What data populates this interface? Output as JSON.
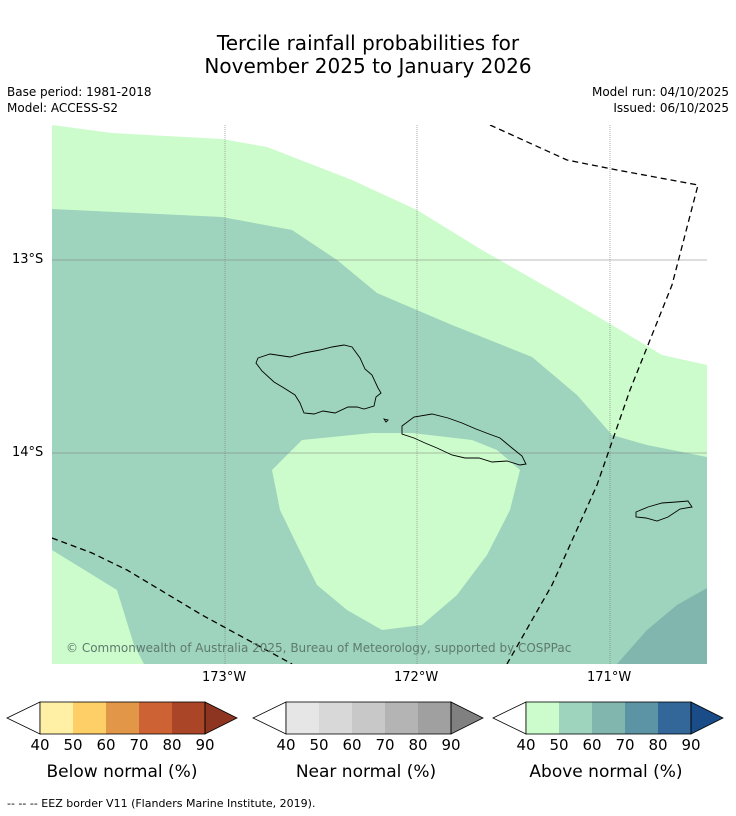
{
  "title": {
    "line1": "Tercile rainfall probabilities for",
    "line2": "November 2025 to January 2026"
  },
  "meta": {
    "base_period": "Base period: 1981-2018",
    "model": "Model: ACCESS-S2",
    "model_run": "Model run: 04/10/2025",
    "issued": "Issued: 06/10/2025"
  },
  "map": {
    "copyright": "© Commonwealth of Australia 2025, Bureau of Meteorology, supported by COSPPac",
    "lat_labels": [
      "13°S",
      "14°S"
    ],
    "lon_labels": [
      "173°W",
      "172°W",
      "171°W"
    ],
    "colors": {
      "above_40": "#ccfccb",
      "above_50": "#9ed3bd",
      "above_60": "#80b6ad",
      "above_70": "#5c94a5",
      "background": "#ffffff"
    }
  },
  "colorbars": [
    {
      "label": "Below normal (%)",
      "ticks": [
        "40",
        "50",
        "60",
        "70",
        "80",
        "90"
      ],
      "colors": [
        "#fff0a6",
        "#fecf66",
        "#e29647",
        "#cd6334",
        "#aa4627",
        "#8d3520"
      ]
    },
    {
      "label": "Near normal (%)",
      "ticks": [
        "40",
        "50",
        "60",
        "70",
        "80",
        "90"
      ],
      "colors": [
        "#e6e6e6",
        "#d8d8d8",
        "#c8c8c8",
        "#b4b4b4",
        "#a0a0a0",
        "#808080"
      ]
    },
    {
      "label": "Above normal (%)",
      "ticks": [
        "40",
        "50",
        "60",
        "70",
        "80",
        "90"
      ],
      "colors": [
        "#ccfccb",
        "#9ed3bd",
        "#80b6ad",
        "#5c94a5",
        "#336699",
        "#1a4d88"
      ]
    }
  ],
  "footer": {
    "legend_note": "--  --  -- EEZ border V11 (Flanders Marine Institute, 2019)."
  }
}
